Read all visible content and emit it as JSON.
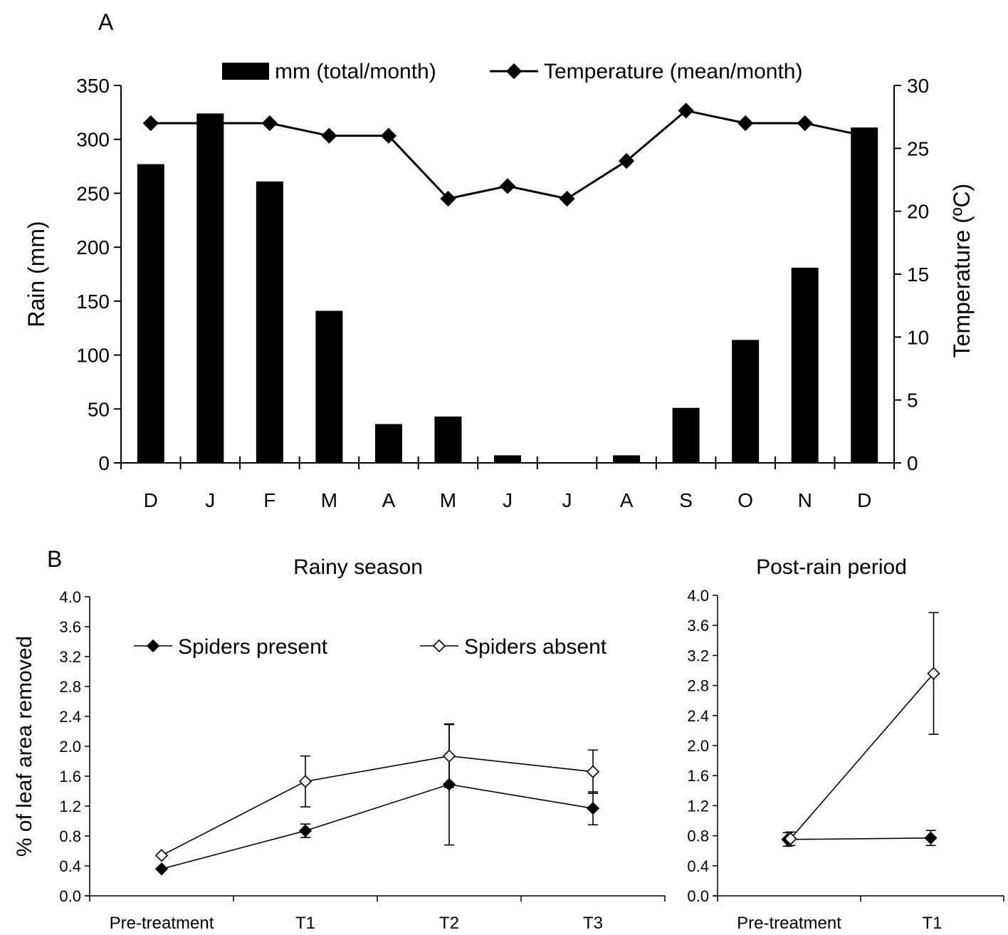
{
  "chart_data": [
    {
      "panel_label": "A",
      "type": "bar",
      "categories": [
        "D",
        "J",
        "F",
        "M",
        "A",
        "M",
        "J",
        "J",
        "A",
        "S",
        "O",
        "N",
        "D"
      ],
      "ylabel": "Rain (mm)",
      "y2label": "Temperature (ºC)",
      "ylim": [
        0,
        350
      ],
      "y2lim": [
        0,
        30
      ],
      "yticks": [
        "0",
        "50",
        "100",
        "150",
        "200",
        "250",
        "300",
        "350"
      ],
      "y2ticks": [
        "0",
        "5",
        "10",
        "15",
        "20",
        "25",
        "30"
      ],
      "legend_position": "top",
      "series": [
        {
          "name": "mm (total/month)",
          "kind": "bar",
          "axis": "left",
          "color": "#000000",
          "values": [
            277,
            324,
            261,
            141,
            36,
            43,
            7,
            0,
            7,
            51,
            114,
            181,
            311
          ]
        },
        {
          "name": "Temperature (mean/month)",
          "kind": "line",
          "axis": "right",
          "marker": "filled-diamond",
          "color": "#000000",
          "values": [
            27,
            27,
            27,
            26,
            26,
            21,
            22,
            21,
            24,
            28,
            27,
            27,
            26
          ]
        }
      ]
    },
    {
      "panel_label": "B",
      "type": "line",
      "title": "Rainy season",
      "categories": [
        "Pre-treatment",
        "T1",
        "T2",
        "T3"
      ],
      "ylabel": "% of leaf area removed",
      "ylim": [
        0,
        4
      ],
      "yticks": [
        "0.0",
        "0.4",
        "0.8",
        "1.2",
        "1.6",
        "2.0",
        "2.4",
        "2.8",
        "3.2",
        "3.6",
        "4.0"
      ],
      "legend_position": "top",
      "series": [
        {
          "name": "Spiders present",
          "marker": "filled-diamond",
          "values": [
            0.36,
            0.87,
            1.49,
            1.17
          ],
          "error": [
            0.0,
            0.09,
            0.81,
            0.22
          ]
        },
        {
          "name": "Spiders absent",
          "marker": "open-diamond",
          "values": [
            0.54,
            1.53,
            1.87,
            1.66
          ],
          "error": [
            0.0,
            0.34,
            0.42,
            0.29
          ]
        }
      ]
    },
    {
      "type": "line",
      "title": "Post-rain period",
      "categories": [
        "Pre-treatment",
        "T1"
      ],
      "ylim": [
        0,
        4
      ],
      "yticks": [
        "0.0",
        "0.4",
        "0.8",
        "1.2",
        "1.6",
        "2.0",
        "2.4",
        "2.8",
        "3.2",
        "3.6",
        "4.0"
      ],
      "series": [
        {
          "name": "Spiders present",
          "marker": "filled-diamond",
          "values": [
            0.75,
            0.77
          ],
          "error": [
            0.09,
            0.1
          ]
        },
        {
          "name": "Spiders absent",
          "marker": "open-diamond",
          "values": [
            0.76,
            2.96
          ],
          "error": [
            0.09,
            0.81
          ]
        }
      ]
    }
  ]
}
